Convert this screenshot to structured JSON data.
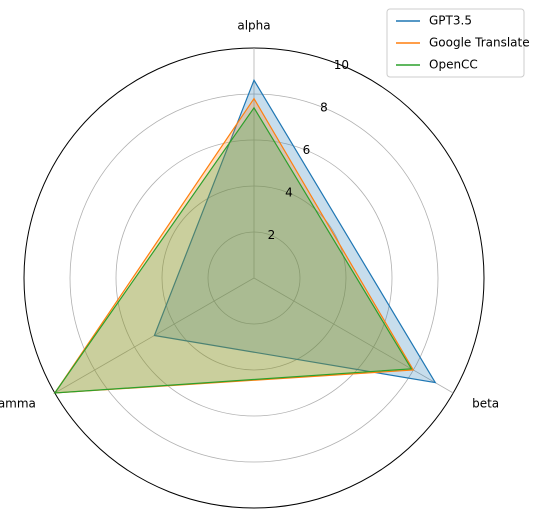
{
  "chart_data": {
    "type": "radar",
    "axes": [
      "alpha",
      "beta",
      "gamma"
    ],
    "rlim": [
      0,
      10
    ],
    "r_ticks": [
      2,
      4,
      6,
      8,
      10
    ],
    "grid": true,
    "legend_placement": "top-right",
    "series": [
      {
        "name": "GPT3.5",
        "values": [
          8.6,
          9.1,
          5.0
        ],
        "color": "#1f77b4"
      },
      {
        "name": "Google Translate",
        "values": [
          7.8,
          8.0,
          10.0
        ],
        "color": "#ff7f0e"
      },
      {
        "name": "OpenCC",
        "values": [
          7.4,
          7.9,
          10.0
        ],
        "color": "#2ca02c"
      }
    ]
  }
}
